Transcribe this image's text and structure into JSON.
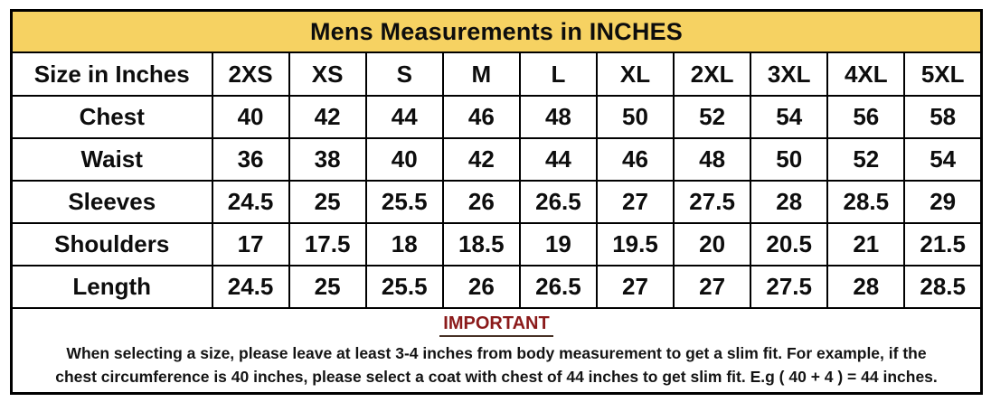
{
  "title": "Mens Measurements in INCHES",
  "columns": [
    "Size in Inches",
    "2XS",
    "XS",
    "S",
    "M",
    "L",
    "XL",
    "2XL",
    "3XL",
    "4XL",
    "5XL"
  ],
  "rows": [
    {
      "label": "Chest",
      "values": [
        "40",
        "42",
        "44",
        "46",
        "48",
        "50",
        "52",
        "54",
        "56",
        "58"
      ]
    },
    {
      "label": "Waist",
      "values": [
        "36",
        "38",
        "40",
        "42",
        "44",
        "46",
        "48",
        "50",
        "52",
        "54"
      ]
    },
    {
      "label": "Sleeves",
      "values": [
        "24.5",
        "25",
        "25.5",
        "26",
        "26.5",
        "27",
        "27.5",
        "28",
        "28.5",
        "29"
      ]
    },
    {
      "label": "Shoulders",
      "values": [
        "17",
        "17.5",
        "18",
        "18.5",
        "19",
        "19.5",
        "20",
        "20.5",
        "21",
        "21.5"
      ]
    },
    {
      "label": "Length",
      "values": [
        "24.5",
        "25",
        "25.5",
        "26",
        "26.5",
        "27",
        "27",
        "27.5",
        "28",
        "28.5"
      ]
    }
  ],
  "note": {
    "heading": "IMPORTANT",
    "line1": "When selecting a size, please leave at least 3-4 inches from body measurement to get a slim fit. For example, if the",
    "line2": "chest circumference is 40 inches, please select a coat with chest of 44 inches to get slim fit. E.g ( 40 + 4 ) = 44 inches."
  },
  "colors": {
    "header_bg": "#F6D262",
    "important_text": "#8B1A1A",
    "border": "#000000",
    "text": "#0d0d0d"
  },
  "chart_data": {
    "type": "table",
    "title": "Mens Measurements in INCHES",
    "categories": [
      "2XS",
      "XS",
      "S",
      "M",
      "L",
      "XL",
      "2XL",
      "3XL",
      "4XL",
      "5XL"
    ],
    "series": [
      {
        "name": "Chest",
        "values": [
          40,
          42,
          44,
          46,
          48,
          50,
          52,
          54,
          56,
          58
        ]
      },
      {
        "name": "Waist",
        "values": [
          36,
          38,
          40,
          42,
          44,
          46,
          48,
          50,
          52,
          54
        ]
      },
      {
        "name": "Sleeves",
        "values": [
          24.5,
          25,
          25.5,
          26,
          26.5,
          27,
          27.5,
          28,
          28.5,
          29
        ]
      },
      {
        "name": "Shoulders",
        "values": [
          17,
          17.5,
          18,
          18.5,
          19,
          19.5,
          20,
          20.5,
          21,
          21.5
        ]
      },
      {
        "name": "Length",
        "values": [
          24.5,
          25,
          25.5,
          26,
          26.5,
          27,
          27,
          27.5,
          28,
          28.5
        ]
      }
    ]
  }
}
